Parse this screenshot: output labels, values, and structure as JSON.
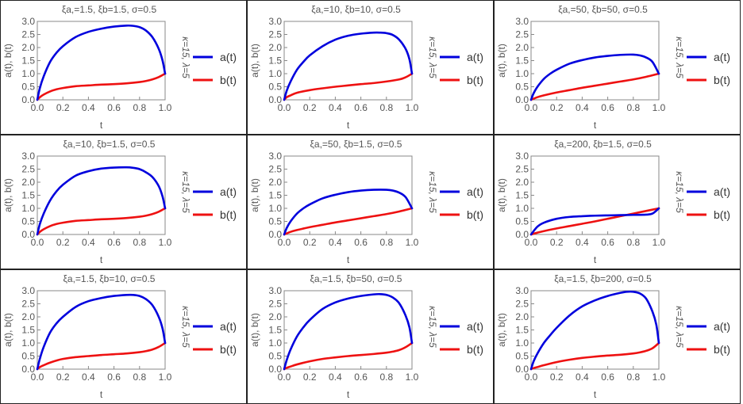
{
  "colors": {
    "a": "#0000dd",
    "b": "#ee1111",
    "axis": "#888888",
    "border": "#222222"
  },
  "chart_data": [
    {
      "type": "line",
      "title": "ξa,=1.5, ξb=1.5, σ=0.5",
      "side_label": "κ=15, λ=5",
      "xlabel": "t",
      "ylabel": "a(t), b(t)",
      "xlim": [
        0,
        1
      ],
      "ylim": [
        0,
        3
      ],
      "x_ticks": [
        "0.0",
        "0.2",
        "0.4",
        "0.6",
        "0.8",
        "1.0"
      ],
      "y_ticks": [
        "0.0",
        "0.5",
        "1.0",
        "1.5",
        "2.0",
        "2.5",
        "3.0"
      ],
      "series": [
        {
          "name": "a(t)",
          "x": [
            0,
            0.02,
            0.05,
            0.1,
            0.15,
            0.2,
            0.3,
            0.4,
            0.5,
            0.6,
            0.7,
            0.75,
            0.8,
            0.85,
            0.9,
            0.95,
            0.98,
            1.0
          ],
          "values": [
            0,
            0.45,
            0.9,
            1.45,
            1.8,
            2.05,
            2.4,
            2.6,
            2.72,
            2.8,
            2.84,
            2.83,
            2.78,
            2.65,
            2.4,
            1.95,
            1.5,
            1.0
          ]
        },
        {
          "name": "b(t)",
          "x": [
            0,
            0.02,
            0.05,
            0.1,
            0.15,
            0.2,
            0.3,
            0.4,
            0.5,
            0.6,
            0.7,
            0.8,
            0.85,
            0.9,
            0.95,
            1.0
          ],
          "values": [
            0,
            0.1,
            0.2,
            0.32,
            0.4,
            0.45,
            0.52,
            0.55,
            0.58,
            0.6,
            0.63,
            0.68,
            0.72,
            0.78,
            0.87,
            1.0
          ]
        }
      ]
    },
    {
      "type": "line",
      "title": "ξa,=10, ξb=10, σ=0.5",
      "side_label": "κ=15, λ=5",
      "xlabel": "t",
      "ylabel": "a(t), b(t)",
      "xlim": [
        0,
        1
      ],
      "ylim": [
        0,
        3
      ],
      "x_ticks": [
        "0.0",
        "0.2",
        "0.4",
        "0.6",
        "0.8",
        "1.0"
      ],
      "y_ticks": [
        "0.0",
        "0.5",
        "1.0",
        "1.5",
        "2.0",
        "2.5",
        "3.0"
      ],
      "series": [
        {
          "name": "a(t)",
          "x": [
            0,
            0.02,
            0.05,
            0.1,
            0.15,
            0.2,
            0.3,
            0.4,
            0.5,
            0.6,
            0.7,
            0.75,
            0.8,
            0.85,
            0.9,
            0.95,
            0.98,
            1.0
          ],
          "values": [
            0,
            0.35,
            0.7,
            1.15,
            1.45,
            1.7,
            2.05,
            2.3,
            2.45,
            2.53,
            2.57,
            2.57,
            2.55,
            2.48,
            2.3,
            1.95,
            1.55,
            1.0
          ]
        },
        {
          "name": "b(t)",
          "x": [
            0,
            0.02,
            0.05,
            0.1,
            0.2,
            0.3,
            0.4,
            0.5,
            0.6,
            0.7,
            0.8,
            0.9,
            0.95,
            1.0
          ],
          "values": [
            0,
            0.1,
            0.17,
            0.27,
            0.37,
            0.44,
            0.5,
            0.55,
            0.6,
            0.64,
            0.7,
            0.78,
            0.86,
            1.0
          ]
        }
      ]
    },
    {
      "type": "line",
      "title": "ξa,=50, ξb=50, σ=0.5",
      "side_label": "κ=15, λ=5",
      "xlabel": "t",
      "ylabel": "a(t), b(t)",
      "xlim": [
        0,
        1
      ],
      "ylim": [
        0,
        3
      ],
      "x_ticks": [
        "0.0",
        "0.2",
        "0.4",
        "0.6",
        "0.8",
        "1.0"
      ],
      "y_ticks": [
        "0.0",
        "0.5",
        "1.0",
        "1.5",
        "2.0",
        "2.5",
        "3.0"
      ],
      "series": [
        {
          "name": "a(t)",
          "x": [
            0,
            0.02,
            0.05,
            0.1,
            0.15,
            0.2,
            0.3,
            0.4,
            0.5,
            0.6,
            0.7,
            0.8,
            0.85,
            0.9,
            0.95,
            1.0
          ],
          "values": [
            0,
            0.25,
            0.5,
            0.8,
            1.0,
            1.15,
            1.38,
            1.52,
            1.62,
            1.68,
            1.72,
            1.73,
            1.7,
            1.62,
            1.45,
            1.0
          ]
        },
        {
          "name": "b(t)",
          "x": [
            0,
            0.05,
            0.1,
            0.2,
            0.3,
            0.4,
            0.5,
            0.6,
            0.7,
            0.8,
            0.9,
            1.0
          ],
          "values": [
            0,
            0.1,
            0.17,
            0.28,
            0.37,
            0.46,
            0.54,
            0.62,
            0.7,
            0.78,
            0.88,
            1.0
          ]
        }
      ]
    },
    {
      "type": "line",
      "title": "ξa,=10, ξb=1.5, σ=0.5",
      "side_label": "κ=15, λ=5",
      "xlabel": "t",
      "ylabel": "a(t), b(t)",
      "xlim": [
        0,
        1
      ],
      "ylim": [
        0,
        3
      ],
      "x_ticks": [
        "0.0",
        "0.2",
        "0.4",
        "0.6",
        "0.8",
        "1.0"
      ],
      "y_ticks": [
        "0.0",
        "0.5",
        "1.0",
        "1.5",
        "2.0",
        "2.5",
        "3.0"
      ],
      "series": [
        {
          "name": "a(t)",
          "x": [
            0,
            0.02,
            0.05,
            0.1,
            0.15,
            0.2,
            0.3,
            0.4,
            0.5,
            0.6,
            0.7,
            0.75,
            0.8,
            0.85,
            0.9,
            0.95,
            0.98,
            1.0
          ],
          "values": [
            0,
            0.4,
            0.8,
            1.3,
            1.65,
            1.9,
            2.25,
            2.42,
            2.52,
            2.56,
            2.57,
            2.55,
            2.5,
            2.38,
            2.2,
            1.85,
            1.45,
            1.0
          ]
        },
        {
          "name": "b(t)",
          "x": [
            0,
            0.02,
            0.05,
            0.1,
            0.15,
            0.2,
            0.3,
            0.4,
            0.5,
            0.6,
            0.7,
            0.8,
            0.85,
            0.9,
            0.95,
            1.0
          ],
          "values": [
            0,
            0.1,
            0.2,
            0.32,
            0.4,
            0.45,
            0.52,
            0.55,
            0.58,
            0.6,
            0.63,
            0.68,
            0.72,
            0.78,
            0.87,
            1.0
          ]
        }
      ]
    },
    {
      "type": "line",
      "title": "ξa,=50, ξb=1.5, σ=0.5",
      "side_label": "κ=15, λ=5",
      "xlabel": "t",
      "ylabel": "a(t), b(t)",
      "xlim": [
        0,
        1
      ],
      "ylim": [
        0,
        3
      ],
      "x_ticks": [
        "0.0",
        "0.2",
        "0.4",
        "0.6",
        "0.8",
        "1.0"
      ],
      "y_ticks": [
        "0.0",
        "0.5",
        "1.0",
        "1.5",
        "2.0",
        "2.5",
        "3.0"
      ],
      "series": [
        {
          "name": "a(t)",
          "x": [
            0,
            0.02,
            0.05,
            0.1,
            0.15,
            0.2,
            0.3,
            0.4,
            0.5,
            0.6,
            0.7,
            0.8,
            0.85,
            0.9,
            0.95,
            1.0
          ],
          "values": [
            0,
            0.25,
            0.5,
            0.8,
            1.0,
            1.15,
            1.38,
            1.52,
            1.62,
            1.68,
            1.71,
            1.71,
            1.68,
            1.6,
            1.43,
            1.0
          ]
        },
        {
          "name": "b(t)",
          "x": [
            0,
            0.05,
            0.1,
            0.2,
            0.3,
            0.4,
            0.5,
            0.6,
            0.7,
            0.8,
            0.9,
            1.0
          ],
          "values": [
            0,
            0.1,
            0.17,
            0.28,
            0.37,
            0.46,
            0.54,
            0.62,
            0.7,
            0.78,
            0.88,
            1.0
          ]
        }
      ]
    },
    {
      "type": "line",
      "title": "ξa,=200, ξb=1.5, σ=0.5",
      "side_label": "κ=15, λ=5",
      "xlabel": "t",
      "ylabel": "a(t), b(t)",
      "xlim": [
        0,
        1
      ],
      "ylim": [
        0,
        3
      ],
      "x_ticks": [
        "0.0",
        "0.2",
        "0.4",
        "0.6",
        "0.8",
        "1.0"
      ],
      "y_ticks": [
        "0.0",
        "0.5",
        "1.0",
        "1.5",
        "2.0",
        "2.5",
        "3.0"
      ],
      "series": [
        {
          "name": "a(t)",
          "x": [
            0,
            0.05,
            0.1,
            0.2,
            0.3,
            0.4,
            0.5,
            0.6,
            0.7,
            0.8,
            0.9,
            0.95,
            1.0
          ],
          "values": [
            0,
            0.3,
            0.45,
            0.6,
            0.67,
            0.7,
            0.72,
            0.73,
            0.74,
            0.75,
            0.76,
            0.8,
            1.0
          ]
        },
        {
          "name": "b(t)",
          "x": [
            0,
            0.05,
            0.1,
            0.2,
            0.3,
            0.4,
            0.5,
            0.6,
            0.7,
            0.8,
            0.9,
            1.0
          ],
          "values": [
            0,
            0.07,
            0.13,
            0.23,
            0.32,
            0.41,
            0.5,
            0.6,
            0.7,
            0.8,
            0.9,
            1.0
          ]
        }
      ]
    },
    {
      "type": "line",
      "title": "ξa,=1.5, ξb=10, σ=0.5",
      "side_label": "κ=15, λ=5",
      "xlabel": "t",
      "ylabel": "a(t), b(t)",
      "xlim": [
        0,
        1
      ],
      "ylim": [
        0,
        3
      ],
      "x_ticks": [
        "0.0",
        "0.2",
        "0.4",
        "0.6",
        "0.8",
        "1.0"
      ],
      "y_ticks": [
        "0.0",
        "0.5",
        "1.0",
        "1.5",
        "2.0",
        "2.5",
        "3.0"
      ],
      "series": [
        {
          "name": "a(t)",
          "x": [
            0,
            0.02,
            0.05,
            0.1,
            0.15,
            0.2,
            0.3,
            0.4,
            0.5,
            0.6,
            0.7,
            0.75,
            0.8,
            0.85,
            0.9,
            0.95,
            0.98,
            1.0
          ],
          "values": [
            0,
            0.4,
            0.85,
            1.4,
            1.75,
            2.0,
            2.38,
            2.6,
            2.72,
            2.8,
            2.84,
            2.84,
            2.8,
            2.68,
            2.45,
            2.0,
            1.55,
            1.0
          ]
        },
        {
          "name": "b(t)",
          "x": [
            0,
            0.02,
            0.05,
            0.1,
            0.15,
            0.2,
            0.3,
            0.4,
            0.5,
            0.6,
            0.7,
            0.8,
            0.85,
            0.9,
            0.95,
            1.0
          ],
          "values": [
            0,
            0.08,
            0.15,
            0.25,
            0.33,
            0.39,
            0.46,
            0.5,
            0.54,
            0.57,
            0.6,
            0.65,
            0.69,
            0.75,
            0.85,
            1.0
          ]
        }
      ]
    },
    {
      "type": "line",
      "title": "ξa,=1.5, ξb=50, σ=0.5",
      "side_label": "κ=15, λ=5",
      "xlabel": "t",
      "ylabel": "a(t), b(t)",
      "xlim": [
        0,
        1
      ],
      "ylim": [
        0,
        3
      ],
      "x_ticks": [
        "0.0",
        "0.2",
        "0.4",
        "0.6",
        "0.8",
        "1.0"
      ],
      "y_ticks": [
        "0.0",
        "0.5",
        "1.0",
        "1.5",
        "2.0",
        "2.5",
        "3.0"
      ],
      "series": [
        {
          "name": "a(t)",
          "x": [
            0,
            0.02,
            0.05,
            0.1,
            0.15,
            0.2,
            0.3,
            0.4,
            0.5,
            0.6,
            0.7,
            0.75,
            0.8,
            0.85,
            0.9,
            0.95,
            0.98,
            1.0
          ],
          "values": [
            0,
            0.35,
            0.75,
            1.25,
            1.6,
            1.88,
            2.3,
            2.55,
            2.7,
            2.8,
            2.86,
            2.87,
            2.84,
            2.74,
            2.52,
            2.05,
            1.6,
            1.0
          ]
        },
        {
          "name": "b(t)",
          "x": [
            0,
            0.02,
            0.05,
            0.1,
            0.2,
            0.3,
            0.4,
            0.5,
            0.6,
            0.7,
            0.8,
            0.85,
            0.9,
            0.95,
            1.0
          ],
          "values": [
            0,
            0.05,
            0.1,
            0.18,
            0.3,
            0.39,
            0.45,
            0.5,
            0.54,
            0.58,
            0.63,
            0.67,
            0.73,
            0.84,
            1.0
          ]
        }
      ]
    },
    {
      "type": "line",
      "title": "ξa,=1.5, ξb=200, σ=0.5",
      "side_label": "κ=15, λ=5",
      "xlabel": "t",
      "ylabel": "a(t), b(t)",
      "xlim": [
        0,
        1
      ],
      "ylim": [
        0,
        3
      ],
      "x_ticks": [
        "0.0",
        "0.2",
        "0.4",
        "0.6",
        "0.8",
        "1.0"
      ],
      "y_ticks": [
        "0.0",
        "0.5",
        "1.0",
        "1.5",
        "2.0",
        "2.5",
        "3.0"
      ],
      "series": [
        {
          "name": "a(t)",
          "x": [
            0,
            0.02,
            0.05,
            0.1,
            0.15,
            0.2,
            0.3,
            0.4,
            0.5,
            0.6,
            0.7,
            0.75,
            0.8,
            0.85,
            0.9,
            0.95,
            0.98,
            1.0
          ],
          "values": [
            0,
            0.3,
            0.6,
            1.0,
            1.3,
            1.58,
            2.05,
            2.4,
            2.63,
            2.8,
            2.92,
            2.96,
            2.96,
            2.9,
            2.7,
            2.2,
            1.7,
            1.0
          ]
        },
        {
          "name": "b(t)",
          "x": [
            0,
            0.02,
            0.05,
            0.1,
            0.2,
            0.3,
            0.4,
            0.5,
            0.6,
            0.7,
            0.8,
            0.85,
            0.9,
            0.95,
            1.0
          ],
          "values": [
            0,
            0.04,
            0.08,
            0.15,
            0.27,
            0.36,
            0.43,
            0.48,
            0.52,
            0.55,
            0.6,
            0.64,
            0.7,
            0.8,
            1.0
          ]
        }
      ]
    }
  ]
}
